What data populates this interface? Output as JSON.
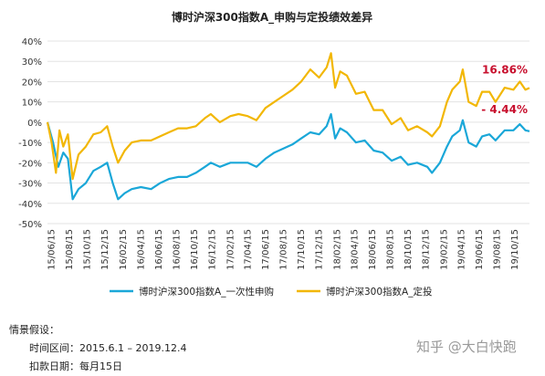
{
  "chart_data": {
    "type": "line",
    "title": "博时沪深300指数A_申购与定投绩效差异",
    "ylim": [
      -50,
      40
    ],
    "y_ticks": [
      "40%",
      "30%",
      "20%",
      "10%",
      "0%",
      "-10%",
      "-20%",
      "-30%",
      "-40%",
      "-50%"
    ],
    "x_ticks": [
      "15/06/15",
      "15/08/15",
      "15/10/15",
      "15/12/15",
      "16/02/15",
      "16/04/15",
      "16/06/15",
      "16/08/15",
      "16/10/15",
      "16/12/15",
      "17/02/15",
      "17/04/15",
      "17/06/15",
      "17/08/15",
      "17/10/15",
      "17/12/15",
      "18/02/15",
      "18/04/15",
      "18/06/15",
      "18/08/15",
      "18/10/15",
      "18/12/15",
      "19/02/15",
      "19/04/15",
      "19/06/15",
      "19/08/15",
      "19/10/15"
    ],
    "grid": true,
    "legend_position": "bottom",
    "x_range": [
      "2015-06-01",
      "2019-12-04"
    ],
    "series": [
      {
        "name": "博时沪深300指数A_一次性申购",
        "color": "#1aa7d8",
        "end_label": "- 4.44%",
        "points": [
          [
            "2015-06-01",
            0
          ],
          [
            "2015-06-20",
            -10
          ],
          [
            "2015-07-08",
            -22
          ],
          [
            "2015-07-25",
            -15
          ],
          [
            "2015-08-10",
            -18
          ],
          [
            "2015-08-26",
            -38
          ],
          [
            "2015-09-15",
            -33
          ],
          [
            "2015-10-10",
            -30
          ],
          [
            "2015-11-05",
            -24
          ],
          [
            "2015-11-30",
            -22
          ],
          [
            "2015-12-22",
            -20
          ],
          [
            "2016-01-10",
            -30
          ],
          [
            "2016-01-28",
            -38
          ],
          [
            "2016-02-20",
            -35
          ],
          [
            "2016-03-15",
            -33
          ],
          [
            "2016-04-15",
            -32
          ],
          [
            "2016-05-20",
            -33
          ],
          [
            "2016-06-20",
            -30
          ],
          [
            "2016-07-20",
            -28
          ],
          [
            "2016-08-20",
            -27
          ],
          [
            "2016-09-20",
            -27
          ],
          [
            "2016-10-20",
            -25
          ],
          [
            "2016-11-20",
            -22
          ],
          [
            "2016-12-10",
            -20
          ],
          [
            "2017-01-10",
            -22
          ],
          [
            "2017-02-15",
            -20
          ],
          [
            "2017-03-15",
            -20
          ],
          [
            "2017-04-15",
            -20
          ],
          [
            "2017-05-15",
            -22
          ],
          [
            "2017-06-15",
            -18
          ],
          [
            "2017-07-15",
            -15
          ],
          [
            "2017-08-15",
            -13
          ],
          [
            "2017-09-15",
            -11
          ],
          [
            "2017-10-15",
            -8
          ],
          [
            "2017-11-15",
            -5
          ],
          [
            "2017-12-15",
            -6
          ],
          [
            "2018-01-10",
            -2
          ],
          [
            "2018-01-25",
            4
          ],
          [
            "2018-02-08",
            -8
          ],
          [
            "2018-02-25",
            -3
          ],
          [
            "2018-03-20",
            -5
          ],
          [
            "2018-04-20",
            -10
          ],
          [
            "2018-05-20",
            -9
          ],
          [
            "2018-06-20",
            -14
          ],
          [
            "2018-07-20",
            -15
          ],
          [
            "2018-08-20",
            -19
          ],
          [
            "2018-09-20",
            -17
          ],
          [
            "2018-10-15",
            -21
          ],
          [
            "2018-11-15",
            -20
          ],
          [
            "2018-12-20",
            -22
          ],
          [
            "2019-01-05",
            -25
          ],
          [
            "2019-02-01",
            -20
          ],
          [
            "2019-02-25",
            -12
          ],
          [
            "2019-03-15",
            -7
          ],
          [
            "2019-04-10",
            -4
          ],
          [
            "2019-04-20",
            1
          ],
          [
            "2019-05-10",
            -10
          ],
          [
            "2019-06-05",
            -12
          ],
          [
            "2019-06-25",
            -7
          ],
          [
            "2019-07-20",
            -6
          ],
          [
            "2019-08-10",
            -9
          ],
          [
            "2019-09-10",
            -4
          ],
          [
            "2019-10-10",
            -4
          ],
          [
            "2019-11-01",
            -1
          ],
          [
            "2019-11-20",
            -4
          ],
          [
            "2019-12-04",
            -4.44
          ]
        ]
      },
      {
        "name": "博时沪深300指数A_定投",
        "color": "#f2b705",
        "end_label": "16.86%",
        "points": [
          [
            "2015-06-01",
            0
          ],
          [
            "2015-06-15",
            -10
          ],
          [
            "2015-06-30",
            -25
          ],
          [
            "2015-07-12",
            -4
          ],
          [
            "2015-07-25",
            -12
          ],
          [
            "2015-08-10",
            -6
          ],
          [
            "2015-08-26",
            -28
          ],
          [
            "2015-09-15",
            -16
          ],
          [
            "2015-10-10",
            -12
          ],
          [
            "2015-11-05",
            -6
          ],
          [
            "2015-11-30",
            -5
          ],
          [
            "2015-12-22",
            -2
          ],
          [
            "2016-01-10",
            -12
          ],
          [
            "2016-01-28",
            -20
          ],
          [
            "2016-02-20",
            -14
          ],
          [
            "2016-03-15",
            -10
          ],
          [
            "2016-04-15",
            -9
          ],
          [
            "2016-05-20",
            -9
          ],
          [
            "2016-06-20",
            -7
          ],
          [
            "2016-07-20",
            -5
          ],
          [
            "2016-08-20",
            -3
          ],
          [
            "2016-09-20",
            -3
          ],
          [
            "2016-10-20",
            -2
          ],
          [
            "2016-11-20",
            2
          ],
          [
            "2016-12-10",
            4
          ],
          [
            "2017-01-10",
            0
          ],
          [
            "2017-02-15",
            3
          ],
          [
            "2017-03-15",
            4
          ],
          [
            "2017-04-15",
            3
          ],
          [
            "2017-05-15",
            1
          ],
          [
            "2017-06-15",
            7
          ],
          [
            "2017-07-15",
            10
          ],
          [
            "2017-08-15",
            13
          ],
          [
            "2017-09-15",
            16
          ],
          [
            "2017-10-15",
            20
          ],
          [
            "2017-11-15",
            26
          ],
          [
            "2017-12-15",
            22
          ],
          [
            "2018-01-10",
            27
          ],
          [
            "2018-01-25",
            34
          ],
          [
            "2018-02-08",
            17
          ],
          [
            "2018-02-25",
            25
          ],
          [
            "2018-03-20",
            23
          ],
          [
            "2018-04-20",
            14
          ],
          [
            "2018-05-20",
            15
          ],
          [
            "2018-06-20",
            6
          ],
          [
            "2018-07-20",
            6
          ],
          [
            "2018-08-20",
            -1
          ],
          [
            "2018-09-20",
            2
          ],
          [
            "2018-10-15",
            -4
          ],
          [
            "2018-11-15",
            -2
          ],
          [
            "2018-12-20",
            -5
          ],
          [
            "2019-01-05",
            -7
          ],
          [
            "2019-02-01",
            -2
          ],
          [
            "2019-02-25",
            10
          ],
          [
            "2019-03-15",
            16
          ],
          [
            "2019-04-10",
            20
          ],
          [
            "2019-04-20",
            26
          ],
          [
            "2019-05-10",
            10
          ],
          [
            "2019-06-05",
            8
          ],
          [
            "2019-06-25",
            15
          ],
          [
            "2019-07-20",
            15
          ],
          [
            "2019-08-10",
            10
          ],
          [
            "2019-09-10",
            17
          ],
          [
            "2019-10-10",
            16
          ],
          [
            "2019-11-01",
            20
          ],
          [
            "2019-11-20",
            16
          ],
          [
            "2019-12-04",
            16.86
          ]
        ]
      }
    ]
  },
  "notes": {
    "heading": "情景假设：",
    "period": "时间区间：2015.6.1 – 2019.12.4",
    "deduction": "扣款日期：每月15日"
  },
  "watermark": "知乎 @大白快跑"
}
